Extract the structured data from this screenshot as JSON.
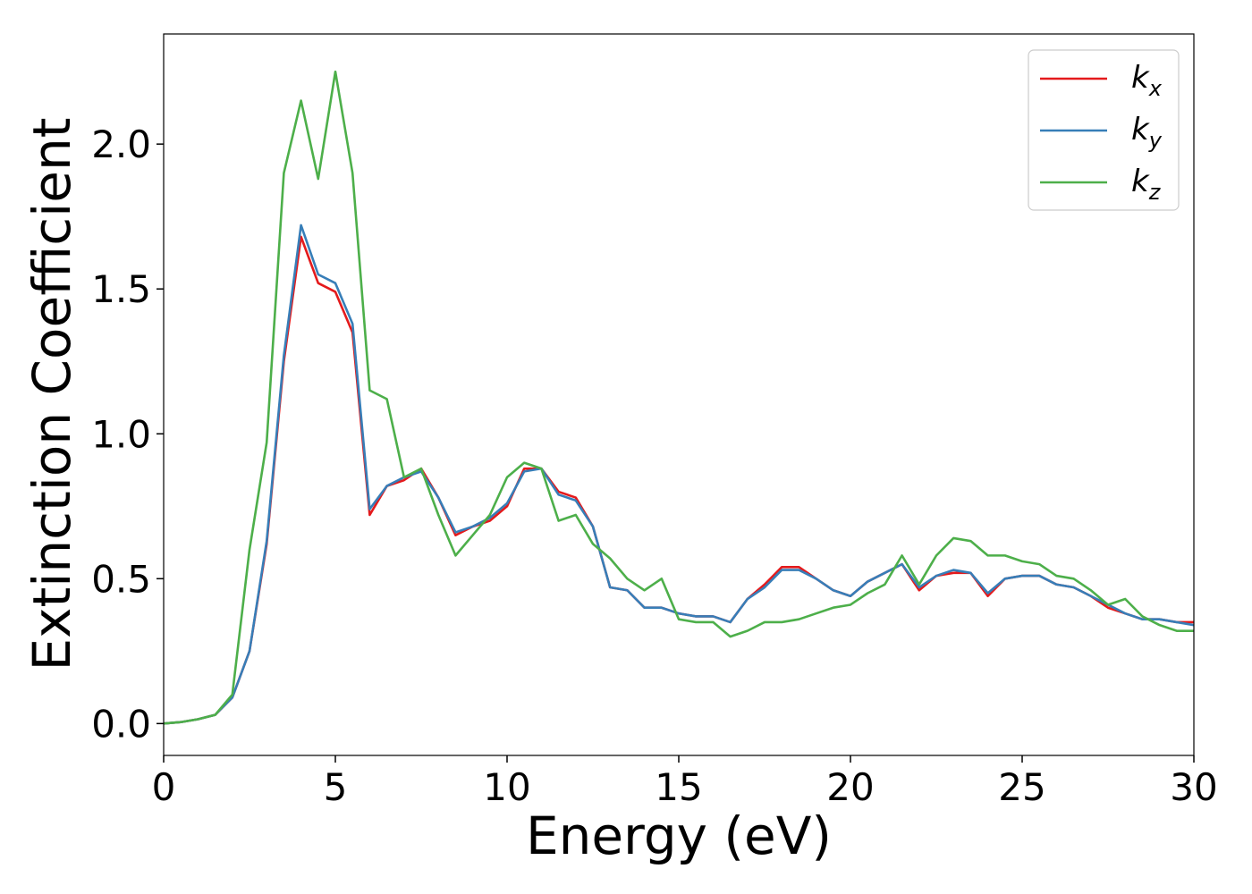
{
  "chart_data": {
    "type": "line",
    "xlabel": "Energy (eV)",
    "ylabel": "Extinction Coefficient",
    "x": [
      0,
      0.5,
      1,
      1.5,
      2,
      2.5,
      3,
      3.5,
      4,
      4.5,
      5,
      5.5,
      6,
      6.5,
      7,
      7.5,
      8,
      8.5,
      9,
      9.5,
      10,
      10.5,
      11,
      11.5,
      12,
      12.5,
      13,
      13.5,
      14,
      14.5,
      15,
      15.5,
      16,
      16.5,
      17,
      17.5,
      18,
      18.5,
      19,
      19.5,
      20,
      20.5,
      21,
      21.5,
      22,
      22.5,
      23,
      23.5,
      24,
      24.5,
      25,
      25.5,
      26,
      26.5,
      27,
      27.5,
      28,
      28.5,
      29,
      29.5,
      30
    ],
    "series": [
      {
        "name": "kx",
        "color": "#e41a1c",
        "values": [
          0,
          0.005,
          0.015,
          0.03,
          0.09,
          0.25,
          0.62,
          1.25,
          1.68,
          1.52,
          1.49,
          1.35,
          0.72,
          0.82,
          0.84,
          0.88,
          0.78,
          0.65,
          0.68,
          0.7,
          0.75,
          0.88,
          0.88,
          0.8,
          0.78,
          0.68,
          0.47,
          0.46,
          0.4,
          0.4,
          0.38,
          0.37,
          0.37,
          0.35,
          0.43,
          0.48,
          0.54,
          0.54,
          0.5,
          0.46,
          0.44,
          0.49,
          0.52,
          0.55,
          0.46,
          0.51,
          0.52,
          0.52,
          0.44,
          0.5,
          0.51,
          0.51,
          0.48,
          0.47,
          0.44,
          0.4,
          0.38,
          0.36,
          0.36,
          0.35,
          0.35
        ]
      },
      {
        "name": "ky",
        "color": "#377eb8",
        "values": [
          0,
          0.005,
          0.015,
          0.03,
          0.09,
          0.25,
          0.63,
          1.27,
          1.72,
          1.55,
          1.52,
          1.38,
          0.74,
          0.82,
          0.85,
          0.87,
          0.78,
          0.66,
          0.68,
          0.71,
          0.76,
          0.87,
          0.88,
          0.79,
          0.77,
          0.68,
          0.47,
          0.46,
          0.4,
          0.4,
          0.38,
          0.37,
          0.37,
          0.35,
          0.43,
          0.47,
          0.53,
          0.53,
          0.5,
          0.46,
          0.44,
          0.49,
          0.52,
          0.55,
          0.47,
          0.51,
          0.53,
          0.52,
          0.45,
          0.5,
          0.51,
          0.51,
          0.48,
          0.47,
          0.44,
          0.41,
          0.38,
          0.36,
          0.36,
          0.35,
          0.34
        ]
      },
      {
        "name": "kz",
        "color": "#4daf4a",
        "values": [
          0,
          0.005,
          0.015,
          0.03,
          0.1,
          0.6,
          0.97,
          1.9,
          2.15,
          1.88,
          2.25,
          1.9,
          1.15,
          1.12,
          0.85,
          0.88,
          0.72,
          0.58,
          0.65,
          0.72,
          0.85,
          0.9,
          0.88,
          0.7,
          0.72,
          0.62,
          0.57,
          0.5,
          0.46,
          0.5,
          0.36,
          0.35,
          0.35,
          0.3,
          0.32,
          0.35,
          0.35,
          0.36,
          0.38,
          0.4,
          0.41,
          0.45,
          0.48,
          0.58,
          0.48,
          0.58,
          0.64,
          0.63,
          0.58,
          0.58,
          0.56,
          0.55,
          0.51,
          0.5,
          0.46,
          0.41,
          0.43,
          0.37,
          0.34,
          0.32,
          0.32
        ]
      }
    ],
    "xlim": [
      0,
      30
    ],
    "ylim": [
      -0.11,
      2.38
    ],
    "xticks": [
      0,
      5,
      10,
      15,
      20,
      25,
      30
    ],
    "yticks": [
      {
        "value": 0,
        "label": "0.0"
      },
      0.5,
      {
        "value": 1,
        "label": "1.0"
      },
      1.5,
      {
        "value": 2,
        "label": "2.0"
      }
    ],
    "grid": false,
    "legend": "upper right"
  }
}
